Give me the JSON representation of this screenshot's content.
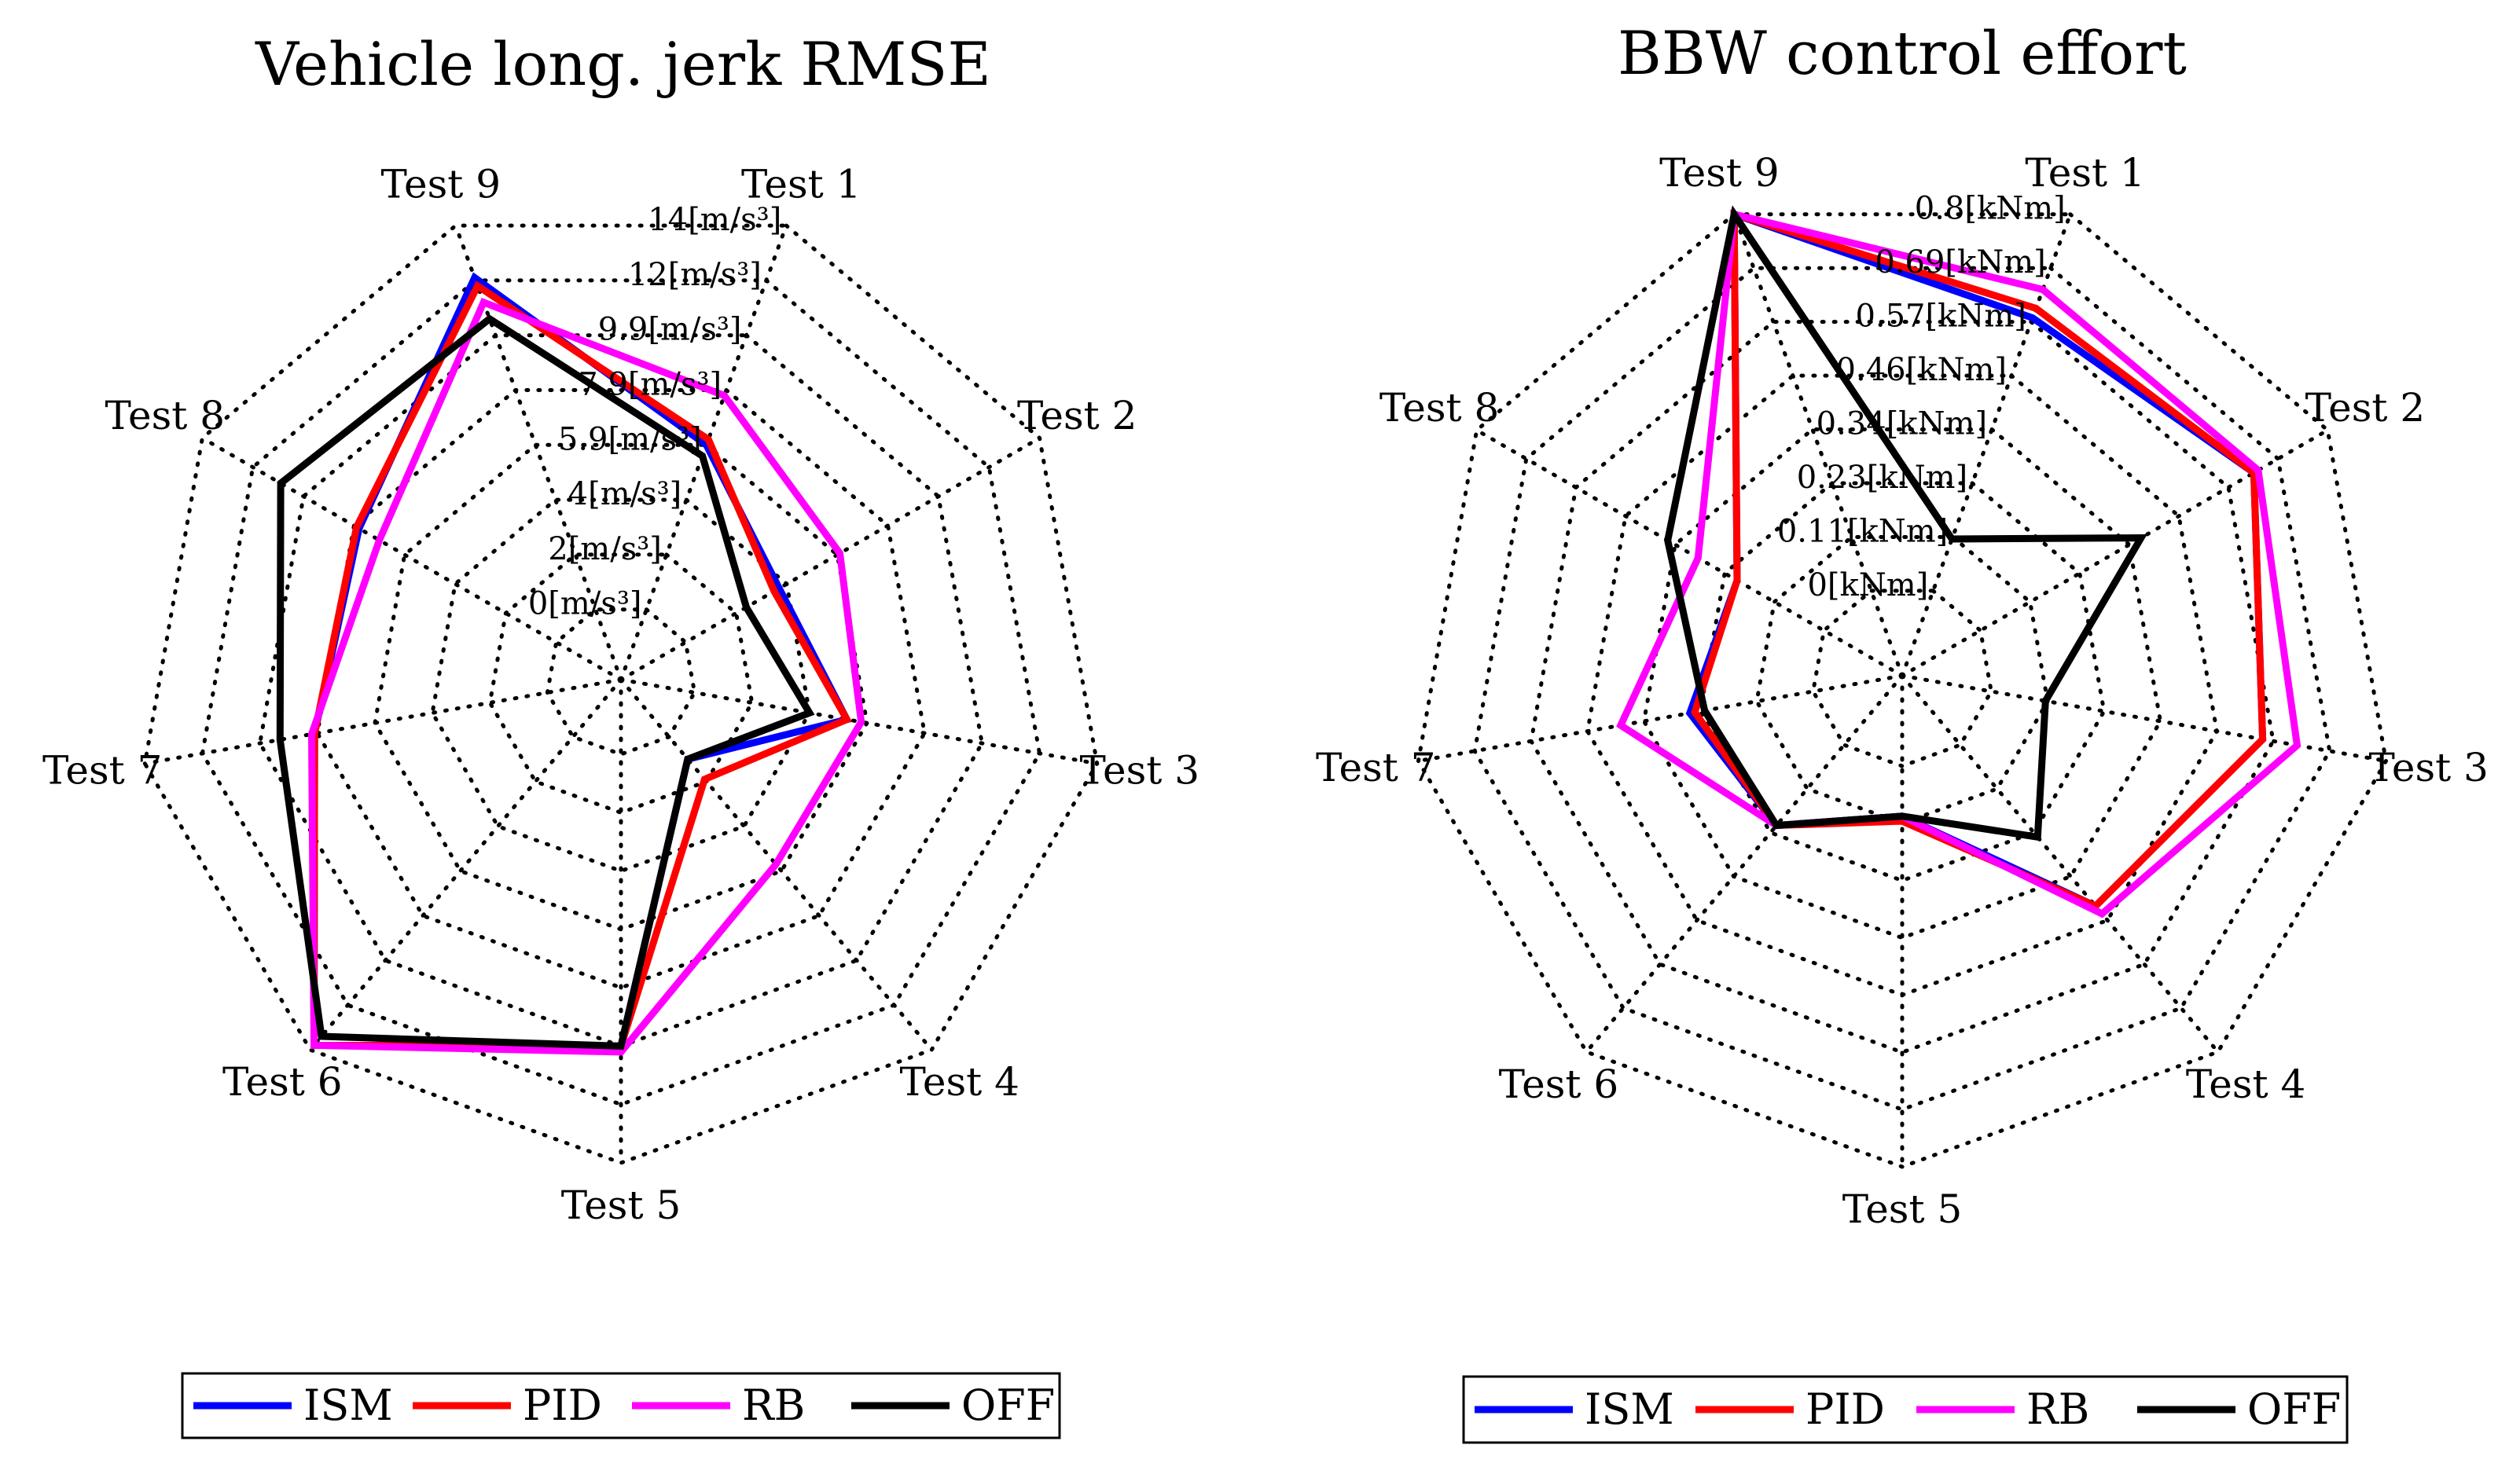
{
  "chart_data": [
    {
      "type": "radar",
      "title": "Vehicle long. jerk RMSE",
      "categories": [
        "Test 1",
        "Test 2",
        "Test 3",
        "Test 4",
        "Test 5",
        "Test 6",
        "Test 7",
        "Test 8",
        "Test 9"
      ],
      "ring_labels": [
        "0[m/s³]",
        "2[m/s³]",
        "4[m/s³]",
        "5.9[m/s³]",
        "7.9[m/s³]",
        "9.9[m/s³]",
        "12[m/s³]",
        "14[m/s³]"
      ],
      "range": [
        0,
        14
      ],
      "series": [
        {
          "name": "ISM",
          "color": "#0000ff",
          "values": [
            6.0,
            3.7,
            5.3,
            1.0,
            10.0,
            13.8,
            8.1,
            7.8,
            12.1
          ]
        },
        {
          "name": "PID",
          "color": "#ff0000",
          "values": [
            6.2,
            3.5,
            5.3,
            1.9,
            10.0,
            13.8,
            8.1,
            7.9,
            11.8
          ]
        },
        {
          "name": "RB",
          "color": "#ff00ff",
          "values": [
            7.8,
            6.1,
            5.8,
            5.7,
            10.2,
            13.8,
            8.2,
            7.0,
            11.2
          ]
        },
        {
          "name": "OFF",
          "color": "#000000",
          "values": [
            5.6,
            2.4,
            4.0,
            1.0,
            10.0,
            13.4,
            9.3,
            10.9,
            10.6
          ]
        }
      ],
      "legend": [
        "ISM",
        "PID",
        "RB",
        "OFF"
      ]
    },
    {
      "type": "radar",
      "title": "BBW control effort",
      "categories": [
        "Test 1",
        "Test 2",
        "Test 3",
        "Test 4",
        "Test 5",
        "Test 6",
        "Test 7",
        "Test 8",
        "Test 9"
      ],
      "ring_labels": [
        "0[kNm]",
        "0.11[kNm]",
        "0.23[kNm]",
        "0.34[kNm]",
        "0.46[kNm]",
        "0.57[kNm]",
        "0.69[kNm]",
        "0.8[kNm]"
      ],
      "range": [
        0,
        0.8
      ],
      "series": [
        {
          "name": "ISM",
          "color": "#0000ff",
          "values": [
            0.58,
            0.63,
            0.55,
            0.42,
            0.1,
            0.21,
            0.25,
            0.2,
            0.8
          ]
        },
        {
          "name": "PID",
          "color": "#ff0000",
          "values": [
            0.6,
            0.63,
            0.55,
            0.42,
            0.11,
            0.21,
            0.24,
            0.2,
            0.8
          ]
        },
        {
          "name": "RB",
          "color": "#ff00ff",
          "values": [
            0.64,
            0.64,
            0.62,
            0.44,
            0.1,
            0.21,
            0.39,
            0.29,
            0.8
          ]
        },
        {
          "name": "OFF",
          "color": "#000000",
          "values": [
            0.11,
            0.37,
            0.11,
            0.24,
            0.1,
            0.21,
            0.22,
            0.36,
            0.8
          ]
        }
      ],
      "legend": [
        "ISM",
        "PID",
        "RB",
        "OFF"
      ]
    }
  ]
}
